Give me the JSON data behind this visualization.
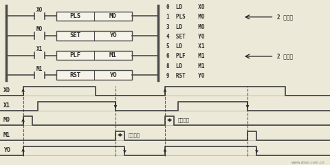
{
  "bg_color": "#ece9d8",
  "ladder_color": "#4a4a4a",
  "box_color": "#f5f2e8",
  "box_edge": "#4a4a4a",
  "text_color": "#2a2a2a",
  "code_lines": [
    "0  LD     XO",
    "1  PLS    MO",
    "3  LD     MO",
    "4  SET    YO",
    "5  LD     X1",
    "6  PLF    M1",
    "8  LD     M1",
    "9  RST    YO"
  ],
  "timing_labels": [
    "XO",
    "X1",
    "MO",
    "M1",
    "YO"
  ],
  "scan_label": "扯描周期",
  "step2_label": "2 步指令",
  "watermark": "www.dian.com.cn"
}
